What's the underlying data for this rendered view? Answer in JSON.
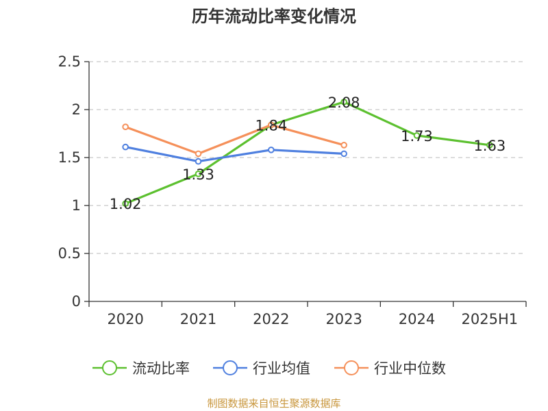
{
  "chart_data": {
    "type": "line",
    "title": "历年流动比率变化情况",
    "categories": [
      "2020",
      "2021",
      "2022",
      "2023",
      "2024",
      "2025H1"
    ],
    "ylim": [
      0,
      2.5
    ],
    "yticks": [
      "0",
      "0.5",
      "1",
      "1.5",
      "2",
      "2.5"
    ],
    "grid": true,
    "legend_position": "bottom",
    "series": [
      {
        "name": "流动比率",
        "color": "#5cc02f",
        "values": [
          1.02,
          1.33,
          1.84,
          2.08,
          1.73,
          1.63
        ],
        "labels": [
          "1.02",
          "1.33",
          "1.84",
          "2.08",
          "1.73",
          "1.63"
        ]
      },
      {
        "name": "行业均值",
        "color": "#4e7fdf",
        "values": [
          1.61,
          1.46,
          1.58,
          1.54,
          null,
          null
        ]
      },
      {
        "name": "行业中位数",
        "color": "#f5905a",
        "values": [
          1.82,
          1.54,
          1.84,
          1.63,
          null,
          null
        ]
      }
    ],
    "source_note": "制图数据来自恒生聚源数据库"
  }
}
